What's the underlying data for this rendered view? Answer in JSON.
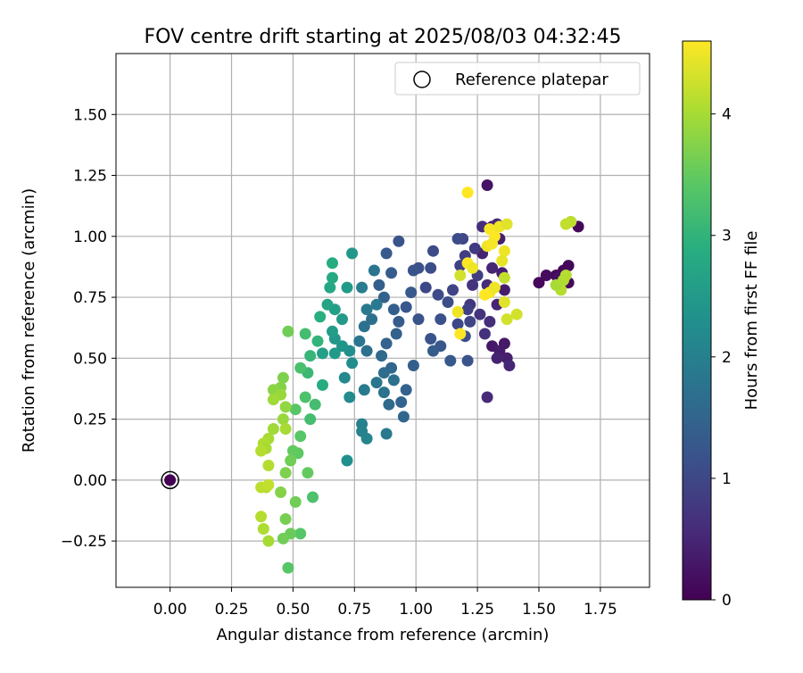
{
  "chart_data": {
    "type": "scatter",
    "title": "FOV centre drift starting at 2025/08/03 04:32:45",
    "xlabel": "Angular distance from reference (arcmin)",
    "ylabel": "Rotation from reference (arcmin)",
    "xlim": [
      -0.22,
      1.95
    ],
    "ylim": [
      -0.44,
      1.75
    ],
    "xticks": [
      "0.00",
      "0.25",
      "0.50",
      "0.75",
      "1.00",
      "1.25",
      "1.50",
      "1.75"
    ],
    "xtick_values": [
      0,
      0.25,
      0.5,
      0.75,
      1.0,
      1.25,
      1.5,
      1.75
    ],
    "yticks": [
      "−0.25",
      "0.00",
      "0.25",
      "0.50",
      "0.75",
      "1.00",
      "1.25",
      "1.50"
    ],
    "ytick_values": [
      -0.25,
      0,
      0.25,
      0.5,
      0.75,
      1.0,
      1.25,
      1.5
    ],
    "grid": true,
    "legend": {
      "placement": "top-right",
      "label": "Reference platepar"
    },
    "reference_point": {
      "x": 0,
      "y": 0
    },
    "colorbar": {
      "label": "Hours from first FF file",
      "min": 0,
      "max": 4.6,
      "ticks": [
        "0",
        "1",
        "2",
        "3",
        "4"
      ],
      "tick_values": [
        0,
        1,
        2,
        3,
        4
      ],
      "colormap": "viridis"
    },
    "points": [
      [
        0.0,
        0.0,
        0.0
      ],
      [
        1.29,
        1.21,
        0.25
      ],
      [
        1.31,
        1.04,
        0.35
      ],
      [
        1.34,
        0.99,
        0.4
      ],
      [
        1.27,
        0.93,
        0.45
      ],
      [
        1.31,
        0.87,
        0.5
      ],
      [
        1.35,
        0.85,
        0.42
      ],
      [
        1.29,
        0.8,
        0.55
      ],
      [
        1.36,
        0.78,
        0.38
      ],
      [
        1.33,
        0.72,
        0.48
      ],
      [
        1.3,
        0.65,
        0.6
      ],
      [
        1.28,
        0.6,
        0.65
      ],
      [
        1.31,
        0.55,
        0.3
      ],
      [
        1.34,
        0.53,
        0.35
      ],
      [
        1.37,
        0.5,
        0.4
      ],
      [
        1.33,
        0.5,
        0.45
      ],
      [
        1.38,
        0.47,
        0.5
      ],
      [
        1.29,
        0.34,
        0.55
      ],
      [
        1.36,
        0.56,
        0.32
      ],
      [
        1.26,
        0.68,
        0.7
      ],
      [
        1.22,
        0.72,
        0.75
      ],
      [
        1.5,
        0.81,
        0.1
      ],
      [
        1.53,
        0.84,
        0.15
      ],
      [
        1.57,
        0.84,
        0.12
      ],
      [
        1.6,
        0.86,
        0.1
      ],
      [
        1.62,
        0.88,
        0.08
      ],
      [
        1.62,
        0.81,
        0.12
      ],
      [
        1.58,
        0.83,
        0.2
      ],
      [
        1.66,
        1.04,
        0.1
      ],
      [
        1.33,
        1.05,
        0.55
      ],
      [
        1.24,
        0.95,
        0.8
      ],
      [
        1.2,
        0.92,
        0.85
      ],
      [
        1.18,
        0.88,
        0.9
      ],
      [
        1.25,
        0.84,
        0.85
      ],
      [
        1.15,
        0.78,
        0.95
      ],
      [
        1.19,
        0.99,
        1.0
      ],
      [
        1.17,
        0.99,
        1.05
      ],
      [
        1.27,
        1.04,
        0.6
      ],
      [
        1.23,
        0.8,
        0.7
      ],
      [
        1.21,
        0.7,
        0.9
      ],
      [
        1.22,
        0.65,
        0.95
      ],
      [
        1.17,
        0.64,
        1.0
      ],
      [
        1.2,
        0.59,
        1.1
      ],
      [
        1.21,
        0.49,
        1.2
      ],
      [
        1.14,
        0.49,
        1.3
      ],
      [
        1.1,
        0.55,
        1.25
      ],
      [
        1.06,
        0.58,
        1.2
      ],
      [
        1.1,
        0.66,
        1.15
      ],
      [
        1.13,
        0.73,
        1.1
      ],
      [
        1.09,
        0.76,
        1.05
      ],
      [
        1.04,
        0.79,
        1.0
      ],
      [
        1.06,
        0.87,
        1.1
      ],
      [
        1.07,
        0.94,
        1.05
      ],
      [
        1.01,
        0.87,
        1.15
      ],
      [
        0.99,
        0.86,
        1.2
      ],
      [
        0.98,
        0.77,
        1.3
      ],
      [
        0.96,
        0.71,
        1.25
      ],
      [
        1.01,
        0.66,
        1.2
      ],
      [
        1.07,
        0.53,
        1.35
      ],
      [
        0.99,
        0.47,
        1.4
      ],
      [
        0.96,
        0.37,
        1.45
      ],
      [
        0.94,
        0.32,
        1.5
      ],
      [
        0.95,
        0.26,
        1.55
      ],
      [
        0.89,
        0.31,
        1.6
      ],
      [
        0.93,
        0.98,
        1.2
      ],
      [
        0.88,
        0.93,
        1.3
      ],
      [
        0.9,
        0.85,
        1.35
      ],
      [
        0.85,
        0.8,
        1.4
      ],
      [
        0.87,
        0.75,
        1.45
      ],
      [
        0.91,
        0.7,
        1.4
      ],
      [
        0.93,
        0.65,
        1.35
      ],
      [
        0.92,
        0.6,
        1.45
      ],
      [
        0.88,
        0.56,
        1.5
      ],
      [
        0.86,
        0.51,
        1.6
      ],
      [
        0.9,
        0.46,
        1.55
      ],
      [
        0.87,
        0.44,
        1.65
      ],
      [
        0.91,
        0.41,
        1.7
      ],
      [
        0.87,
        0.36,
        1.75
      ],
      [
        0.84,
        0.4,
        1.8
      ],
      [
        0.79,
        0.37,
        1.9
      ],
      [
        0.8,
        0.53,
        1.7
      ],
      [
        0.77,
        0.57,
        1.8
      ],
      [
        0.79,
        0.63,
        1.75
      ],
      [
        0.82,
        0.66,
        1.7
      ],
      [
        0.8,
        0.7,
        1.85
      ],
      [
        0.84,
        0.72,
        1.9
      ],
      [
        0.78,
        0.79,
        1.95
      ],
      [
        0.83,
        0.86,
        1.8
      ],
      [
        0.88,
        0.19,
        1.9
      ],
      [
        0.78,
        0.23,
        2.0
      ],
      [
        0.8,
        0.17,
        2.1
      ],
      [
        0.78,
        0.2,
        2.05
      ],
      [
        0.72,
        0.08,
        2.3
      ],
      [
        0.73,
        0.34,
        2.2
      ],
      [
        0.71,
        0.42,
        2.15
      ],
      [
        0.74,
        0.48,
        2.25
      ],
      [
        0.73,
        0.53,
        2.3
      ],
      [
        0.7,
        0.55,
        2.4
      ],
      [
        0.67,
        0.52,
        2.5
      ],
      [
        0.67,
        0.58,
        2.45
      ],
      [
        0.62,
        0.52,
        2.6
      ],
      [
        0.66,
        0.61,
        2.55
      ],
      [
        0.7,
        0.66,
        2.5
      ],
      [
        0.67,
        0.7,
        2.6
      ],
      [
        0.64,
        0.72,
        2.7
      ],
      [
        0.65,
        0.79,
        2.75
      ],
      [
        0.66,
        0.83,
        2.8
      ],
      [
        0.72,
        0.79,
        2.5
      ],
      [
        0.74,
        0.93,
        2.45
      ],
      [
        0.66,
        0.89,
        2.85
      ],
      [
        0.61,
        0.67,
        2.9
      ],
      [
        0.6,
        0.57,
        3.0
      ],
      [
        0.57,
        0.51,
        3.05
      ],
      [
        0.56,
        0.44,
        3.1
      ],
      [
        0.62,
        0.39,
        2.85
      ],
      [
        0.59,
        0.31,
        3.2
      ],
      [
        0.57,
        0.25,
        3.2
      ],
      [
        0.55,
        0.34,
        3.3
      ],
      [
        0.53,
        0.46,
        3.25
      ],
      [
        0.55,
        0.6,
        3.2
      ],
      [
        0.48,
        0.61,
        3.6
      ],
      [
        0.51,
        0.29,
        3.4
      ],
      [
        0.53,
        0.18,
        3.4
      ],
      [
        0.52,
        0.11,
        3.45
      ],
      [
        0.5,
        0.12,
        3.5
      ],
      [
        0.49,
        0.08,
        3.6
      ],
      [
        0.56,
        0.03,
        3.5
      ],
      [
        0.58,
        -0.07,
        3.3
      ],
      [
        0.51,
        -0.09,
        3.6
      ],
      [
        0.53,
        -0.22,
        3.4
      ],
      [
        0.49,
        -0.22,
        3.55
      ],
      [
        0.46,
        -0.24,
        3.6
      ],
      [
        0.47,
        -0.16,
        3.65
      ],
      [
        0.45,
        -0.05,
        3.75
      ],
      [
        0.47,
        0.03,
        3.7
      ],
      [
        0.48,
        -0.36,
        3.4
      ],
      [
        0.46,
        0.42,
        3.7
      ],
      [
        0.45,
        0.38,
        3.75
      ],
      [
        0.42,
        0.37,
        3.8
      ],
      [
        0.45,
        0.35,
        3.9
      ],
      [
        0.47,
        0.3,
        3.85
      ],
      [
        0.42,
        0.33,
        3.95
      ],
      [
        0.46,
        0.25,
        3.9
      ],
      [
        0.47,
        0.21,
        4.0
      ],
      [
        0.42,
        0.21,
        3.95
      ],
      [
        0.4,
        0.17,
        4.0
      ],
      [
        0.38,
        0.15,
        4.05
      ],
      [
        0.39,
        0.13,
        4.0
      ],
      [
        0.37,
        0.12,
        4.1
      ],
      [
        0.4,
        0.06,
        4.1
      ],
      [
        0.39,
        -0.03,
        4.1
      ],
      [
        0.37,
        -0.03,
        4.15
      ],
      [
        0.4,
        -0.02,
        4.2
      ],
      [
        0.37,
        -0.15,
        4.1
      ],
      [
        0.38,
        -0.2,
        4.05
      ],
      [
        0.4,
        -0.25,
        4.0
      ],
      [
        1.21,
        1.18,
        4.6
      ],
      [
        1.3,
        1.03,
        4.55
      ],
      [
        1.32,
        1.0,
        4.6
      ],
      [
        1.34,
        1.04,
        4.5
      ],
      [
        1.37,
        1.05,
        4.4
      ],
      [
        1.29,
        0.96,
        4.5
      ],
      [
        1.31,
        0.97,
        4.55
      ],
      [
        1.36,
        0.94,
        4.5
      ],
      [
        1.35,
        0.9,
        4.45
      ],
      [
        1.21,
        0.89,
        4.6
      ],
      [
        1.23,
        0.87,
        4.5
      ],
      [
        1.18,
        0.84,
        4.3
      ],
      [
        1.3,
        0.77,
        4.55
      ],
      [
        1.28,
        0.76,
        4.6
      ],
      [
        1.32,
        0.79,
        4.5
      ],
      [
        1.36,
        0.83,
        4.2
      ],
      [
        1.36,
        0.73,
        4.4
      ],
      [
        1.37,
        0.66,
        4.3
      ],
      [
        1.41,
        0.68,
        4.3
      ],
      [
        1.17,
        0.69,
        4.5
      ],
      [
        1.18,
        0.6,
        4.6
      ],
      [
        1.59,
        0.78,
        4.1
      ],
      [
        1.57,
        0.8,
        4.0
      ],
      [
        1.6,
        0.82,
        4.05
      ],
      [
        1.61,
        0.84,
        4.1
      ],
      [
        1.63,
        1.06,
        4.15
      ],
      [
        1.61,
        1.05,
        4.2
      ]
    ]
  }
}
